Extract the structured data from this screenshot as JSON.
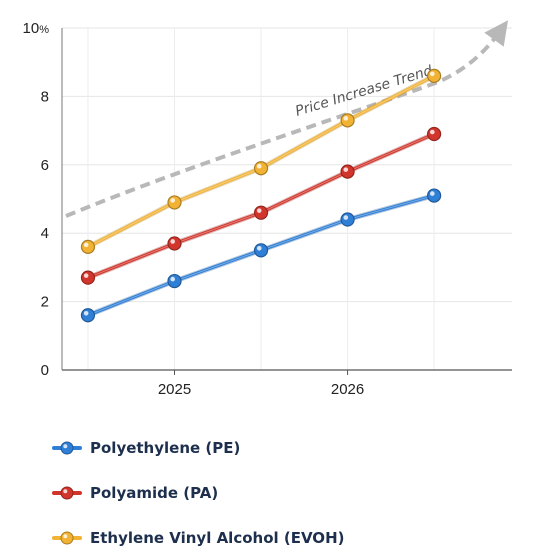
{
  "chart_data": {
    "type": "line",
    "title": "",
    "xlabel": "",
    "ylabel": "",
    "ylim": [
      0,
      10
    ],
    "y_ticks": [
      {
        "value": 0,
        "label": "0",
        "unit": ""
      },
      {
        "value": 2,
        "label": "2",
        "unit": ""
      },
      {
        "value": 4,
        "label": "4",
        "unit": ""
      },
      {
        "value": 6,
        "label": "6",
        "unit": ""
      },
      {
        "value": 8,
        "label": "8",
        "unit": ""
      },
      {
        "value": 10,
        "label": "10",
        "unit": "%"
      }
    ],
    "x_ticks": [
      "2025",
      "2026"
    ],
    "x": [
      1,
      2,
      3,
      4,
      5
    ],
    "x_tick_positions": [
      2,
      4
    ],
    "xlim": [
      0.7,
      5.9
    ],
    "series": [
      {
        "name": "Polyethylene (PE)",
        "color": "#2f7fd6",
        "values": [
          1.6,
          2.6,
          3.5,
          4.4,
          5.1
        ]
      },
      {
        "name": "Polyamide (PA)",
        "color": "#d2352b",
        "values": [
          2.7,
          3.7,
          4.6,
          5.8,
          6.9
        ]
      },
      {
        "name": "Ethylene Vinyl Alcohol (EVOH)",
        "color": "#f2b233",
        "values": [
          3.6,
          4.9,
          5.9,
          7.3,
          8.6
        ]
      }
    ],
    "annotation": {
      "text": "Price Increase Trend",
      "icon": "dashed-trend-arrow",
      "color": "#b8b8b8"
    },
    "grid": true,
    "legend_position": "bottom-left"
  }
}
